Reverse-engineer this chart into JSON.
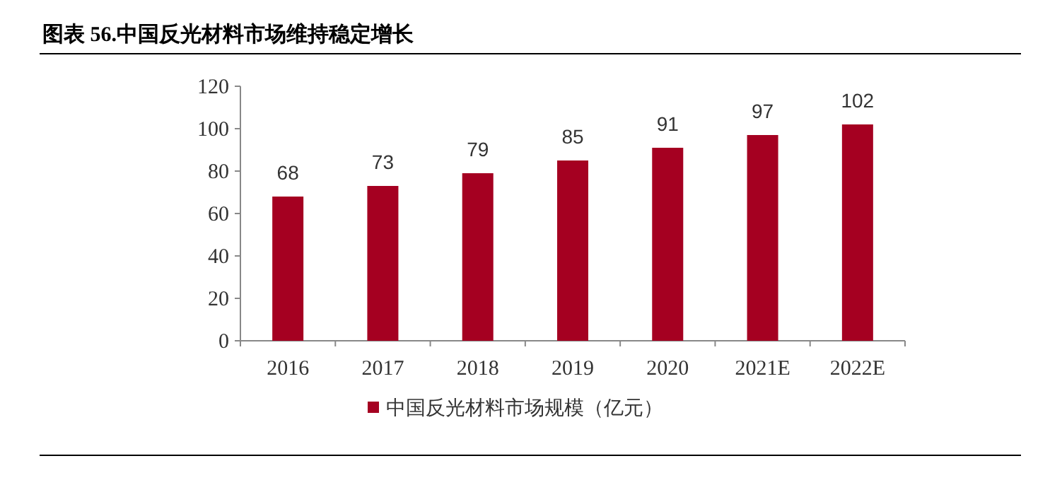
{
  "chart_data": {
    "type": "bar",
    "title": "图表 56.中国反光材料市场维持稳定增长",
    "categories": [
      "2016",
      "2017",
      "2018",
      "2019",
      "2020",
      "2021E",
      "2022E"
    ],
    "series": [
      {
        "name": "中国反光材料市场规模（亿元）",
        "color": "#a50021",
        "values": [
          68,
          73,
          79,
          85,
          91,
          97,
          102
        ]
      }
    ],
    "ylim": [
      0,
      120
    ],
    "yticks": [
      0,
      20,
      40,
      60,
      80,
      100,
      120
    ],
    "data_labels": true,
    "legend": "bottom",
    "grid": false
  }
}
